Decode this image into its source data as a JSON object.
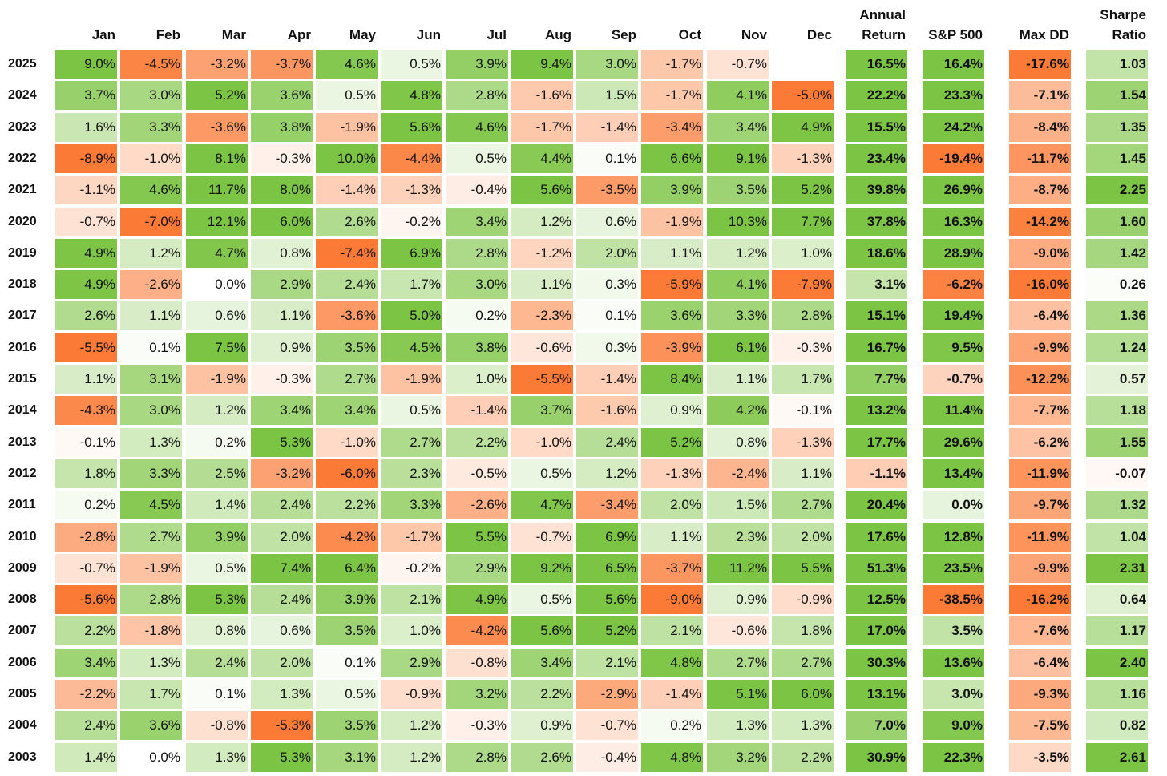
{
  "chart_data": {
    "type": "heatmap",
    "title": "",
    "columns": [
      "Jan",
      "Feb",
      "Mar",
      "Apr",
      "May",
      "Jun",
      "Jul",
      "Aug",
      "Sep",
      "Oct",
      "Nov",
      "Dec",
      "Annual Return",
      "S&P 500",
      "Max DD",
      "Sharpe Ratio"
    ],
    "column_labels": [
      {
        "line1": "",
        "line2": "Jan"
      },
      {
        "line1": "",
        "line2": "Feb"
      },
      {
        "line1": "",
        "line2": "Mar"
      },
      {
        "line1": "",
        "line2": "Apr"
      },
      {
        "line1": "",
        "line2": "May"
      },
      {
        "line1": "",
        "line2": "Jun"
      },
      {
        "line1": "",
        "line2": "Jul"
      },
      {
        "line1": "",
        "line2": "Aug"
      },
      {
        "line1": "",
        "line2": "Sep"
      },
      {
        "line1": "",
        "line2": "Oct"
      },
      {
        "line1": "",
        "line2": "Nov"
      },
      {
        "line1": "",
        "line2": "Dec"
      },
      {
        "line1": "Annual",
        "line2": "Return"
      },
      {
        "line1": "",
        "line2": "S&P 500"
      },
      {
        "line1": "",
        "line2": "Max DD"
      },
      {
        "line1": "Sharpe",
        "line2": "Ratio"
      }
    ],
    "rows": [
      {
        "year": "2025",
        "cells": [
          "9.0%",
          "-4.5%",
          "-3.2%",
          "-3.7%",
          "4.6%",
          "0.5%",
          "3.9%",
          "9.4%",
          "3.0%",
          "-1.7%",
          "-0.7%",
          "",
          "16.5%",
          "16.4%",
          "-17.6%",
          "1.03"
        ]
      },
      {
        "year": "2024",
        "cells": [
          "3.7%",
          "3.0%",
          "5.2%",
          "3.6%",
          "0.5%",
          "4.8%",
          "2.8%",
          "-1.6%",
          "1.5%",
          "-1.7%",
          "4.1%",
          "-5.0%",
          "22.2%",
          "23.3%",
          "-7.1%",
          "1.54"
        ]
      },
      {
        "year": "2023",
        "cells": [
          "1.6%",
          "3.3%",
          "-3.6%",
          "3.8%",
          "-1.9%",
          "5.6%",
          "4.6%",
          "-1.7%",
          "-1.4%",
          "-3.4%",
          "3.4%",
          "4.9%",
          "15.5%",
          "24.2%",
          "-8.4%",
          "1.35"
        ]
      },
      {
        "year": "2022",
        "cells": [
          "-8.9%",
          "-1.0%",
          "8.1%",
          "-0.3%",
          "10.0%",
          "-4.4%",
          "0.5%",
          "4.4%",
          "0.1%",
          "6.6%",
          "9.1%",
          "-1.3%",
          "23.4%",
          "-19.4%",
          "-11.7%",
          "1.45"
        ]
      },
      {
        "year": "2021",
        "cells": [
          "-1.1%",
          "4.6%",
          "11.7%",
          "8.0%",
          "-1.4%",
          "-1.3%",
          "-0.4%",
          "5.6%",
          "-3.5%",
          "3.9%",
          "3.5%",
          "5.2%",
          "39.8%",
          "26.9%",
          "-8.7%",
          "2.25"
        ]
      },
      {
        "year": "2020",
        "cells": [
          "-0.7%",
          "-7.0%",
          "12.1%",
          "6.0%",
          "2.6%",
          "-0.2%",
          "3.4%",
          "1.2%",
          "0.6%",
          "-1.9%",
          "10.3%",
          "7.7%",
          "37.8%",
          "16.3%",
          "-14.2%",
          "1.60"
        ]
      },
      {
        "year": "2019",
        "cells": [
          "4.9%",
          "1.2%",
          "4.7%",
          "0.8%",
          "-7.4%",
          "6.9%",
          "2.8%",
          "-1.2%",
          "2.0%",
          "1.1%",
          "1.2%",
          "1.0%",
          "18.6%",
          "28.9%",
          "-9.0%",
          "1.42"
        ]
      },
      {
        "year": "2018",
        "cells": [
          "4.9%",
          "-2.6%",
          "0.0%",
          "2.9%",
          "2.4%",
          "1.7%",
          "3.0%",
          "1.1%",
          "0.3%",
          "-5.9%",
          "4.1%",
          "-7.9%",
          "3.1%",
          "-6.2%",
          "-16.0%",
          "0.26"
        ]
      },
      {
        "year": "2017",
        "cells": [
          "2.6%",
          "1.1%",
          "0.6%",
          "1.1%",
          "-3.6%",
          "5.0%",
          "0.2%",
          "-2.3%",
          "0.1%",
          "3.6%",
          "3.3%",
          "2.8%",
          "15.1%",
          "19.4%",
          "-6.4%",
          "1.36"
        ]
      },
      {
        "year": "2016",
        "cells": [
          "-5.5%",
          "0.1%",
          "7.5%",
          "0.9%",
          "3.5%",
          "4.5%",
          "3.8%",
          "-0.6%",
          "0.3%",
          "-3.9%",
          "6.1%",
          "-0.3%",
          "16.7%",
          "9.5%",
          "-9.9%",
          "1.24"
        ]
      },
      {
        "year": "2015",
        "cells": [
          "1.1%",
          "3.1%",
          "-1.9%",
          "-0.3%",
          "2.7%",
          "-1.9%",
          "1.0%",
          "-5.5%",
          "-1.4%",
          "8.4%",
          "1.1%",
          "1.7%",
          "7.7%",
          "-0.7%",
          "-12.2%",
          "0.57"
        ]
      },
      {
        "year": "2014",
        "cells": [
          "-4.3%",
          "3.0%",
          "1.2%",
          "3.4%",
          "3.4%",
          "0.5%",
          "-1.4%",
          "3.7%",
          "-1.6%",
          "0.9%",
          "4.2%",
          "-0.1%",
          "13.2%",
          "11.4%",
          "-7.7%",
          "1.18"
        ]
      },
      {
        "year": "2013",
        "cells": [
          "-0.1%",
          "1.3%",
          "0.2%",
          "5.3%",
          "-1.0%",
          "2.7%",
          "2.2%",
          "-1.0%",
          "2.4%",
          "5.2%",
          "0.8%",
          "-1.3%",
          "17.7%",
          "29.6%",
          "-6.2%",
          "1.55"
        ]
      },
      {
        "year": "2012",
        "cells": [
          "1.8%",
          "3.3%",
          "2.5%",
          "-3.2%",
          "-6.0%",
          "2.3%",
          "-0.5%",
          "0.5%",
          "1.2%",
          "-1.3%",
          "-2.4%",
          "1.1%",
          "-1.1%",
          "13.4%",
          "-11.9%",
          "-0.07"
        ]
      },
      {
        "year": "2011",
        "cells": [
          "0.2%",
          "4.5%",
          "1.4%",
          "2.4%",
          "2.2%",
          "3.3%",
          "-2.6%",
          "4.7%",
          "-3.4%",
          "2.0%",
          "1.5%",
          "2.7%",
          "20.4%",
          "0.0%",
          "-9.7%",
          "1.32"
        ]
      },
      {
        "year": "2010",
        "cells": [
          "-2.8%",
          "2.7%",
          "3.9%",
          "2.0%",
          "-4.2%",
          "-1.7%",
          "5.5%",
          "-0.7%",
          "6.9%",
          "1.1%",
          "2.3%",
          "2.0%",
          "17.6%",
          "12.8%",
          "-11.9%",
          "1.04"
        ]
      },
      {
        "year": "2009",
        "cells": [
          "-0.7%",
          "-1.9%",
          "0.5%",
          "7.4%",
          "6.4%",
          "-0.2%",
          "2.9%",
          "9.2%",
          "6.5%",
          "-3.7%",
          "11.2%",
          "5.5%",
          "51.3%",
          "23.5%",
          "-9.9%",
          "2.31"
        ]
      },
      {
        "year": "2008",
        "cells": [
          "-5.6%",
          "2.8%",
          "5.3%",
          "2.4%",
          "3.9%",
          "2.1%",
          "4.9%",
          "0.5%",
          "5.6%",
          "-9.0%",
          "0.9%",
          "-0.9%",
          "12.5%",
          "-38.5%",
          "-16.2%",
          "0.64"
        ]
      },
      {
        "year": "2007",
        "cells": [
          "2.2%",
          "-1.8%",
          "0.8%",
          "0.6%",
          "3.5%",
          "1.0%",
          "-4.2%",
          "5.6%",
          "5.2%",
          "2.1%",
          "-0.6%",
          "1.8%",
          "17.0%",
          "3.5%",
          "-7.6%",
          "1.17"
        ]
      },
      {
        "year": "2006",
        "cells": [
          "3.4%",
          "1.3%",
          "2.4%",
          "2.0%",
          "0.1%",
          "2.9%",
          "-0.8%",
          "3.4%",
          "2.1%",
          "4.8%",
          "2.7%",
          "2.7%",
          "30.3%",
          "13.6%",
          "-6.4%",
          "2.40"
        ]
      },
      {
        "year": "2005",
        "cells": [
          "-2.2%",
          "1.7%",
          "0.1%",
          "1.3%",
          "0.5%",
          "-0.9%",
          "3.2%",
          "2.2%",
          "-2.9%",
          "-1.4%",
          "5.1%",
          "6.0%",
          "13.1%",
          "3.0%",
          "-9.3%",
          "1.16"
        ]
      },
      {
        "year": "2004",
        "cells": [
          "2.4%",
          "3.6%",
          "-0.8%",
          "-5.3%",
          "3.5%",
          "1.2%",
          "-0.3%",
          "0.9%",
          "-0.7%",
          "0.2%",
          "1.3%",
          "1.3%",
          "7.0%",
          "9.0%",
          "-7.5%",
          "0.82"
        ]
      },
      {
        "year": "2003",
        "cells": [
          "1.4%",
          "0.0%",
          "1.3%",
          "5.3%",
          "3.1%",
          "1.2%",
          "2.8%",
          "2.6%",
          "-0.4%",
          "4.8%",
          "3.2%",
          "2.2%",
          "30.9%",
          "22.3%",
          "-3.5%",
          "2.61"
        ]
      }
    ]
  },
  "colors": {
    "positive_strong": "#7cc443",
    "negative_strong": "#fb7a35",
    "neutral": "#ffffff",
    "text": "#111111"
  }
}
